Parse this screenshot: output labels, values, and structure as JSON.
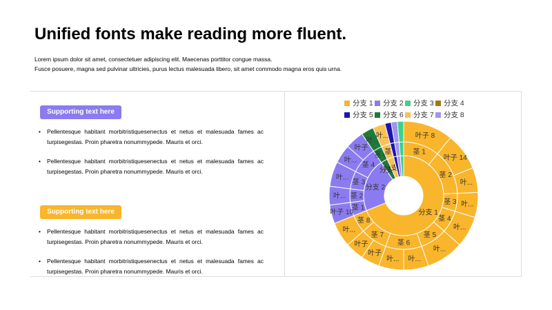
{
  "header": {
    "title": "Unified fonts make reading more fluent.",
    "desc_line1": "Lorem ipsum dolor sit amet, consectetuer adipiscing elit. Maecenas porttitor congue massa.",
    "desc_line2": "Fusce posuere, magna sed pulvinar ultricies, purus lectus malesuada libero, sit amet commodo magna eros quis urna."
  },
  "left_panel": {
    "section1": {
      "label": "Supporting text here",
      "bullets": [
        "Pellentesque habitant morbitristiquesenectus et netus et malesuada fames ac turpisegestas. Proin pharetra nonummypede. Mauris et orci.",
        "Pellentesque habitant morbitristiquesenectus et netus et malesuada fames ac turpisegestas. Proin pharetra nonummypede. Mauris et orci."
      ]
    },
    "section2": {
      "label": "Supporting text here",
      "bullets": [
        "Pellentesque habitant morbitristiquesenectus et netus et malesuada fames ac turpisegestas. Proin pharetra nonummypede. Mauris et orci.",
        "Pellentesque habitant morbitristiquesenectus et netus et malesuada fames ac turpisegestas. Proin pharetra nonummypede. Mauris et orci."
      ]
    }
  },
  "colors": {
    "accent_purple": "#8b7bf0",
    "accent_orange": "#f9b52b"
  },
  "chart_data": {
    "type": "sunburst",
    "title": "",
    "legend": [
      {
        "name": "分支 1",
        "color": "#f9b52b"
      },
      {
        "name": "分支 2",
        "color": "#8b7bf0"
      },
      {
        "name": "分支 3",
        "color": "#3ecf8e"
      },
      {
        "name": "分支 4",
        "color": "#a2790d"
      },
      {
        "name": "分支 5",
        "color": "#1b14b8"
      },
      {
        "name": "分支 6",
        "color": "#1f7a3a"
      },
      {
        "name": "分支 7",
        "color": "#f9c155"
      },
      {
        "name": "分支 8",
        "color": "#9e95ee"
      }
    ],
    "tree": [
      {
        "name": "分支 1",
        "color": "#f9b52b",
        "children": [
          {
            "name": "茎 1",
            "children": [
              {
                "name": "叶子 8",
                "value": 8
              }
            ]
          },
          {
            "name": "茎 2",
            "children": [
              {
                "name": "叶子 14",
                "value": 6
              },
              {
                "name": "叶...",
                "value": 4
              }
            ]
          },
          {
            "name": "茎 3",
            "children": [
              {
                "name": "叶...",
                "value": 4
              }
            ]
          },
          {
            "name": "茎 4",
            "children": [
              {
                "name": "叶...",
                "value": 5
              }
            ]
          },
          {
            "name": "茎 5",
            "children": [
              {
                "name": "叶...",
                "value": 6
              }
            ]
          },
          {
            "name": "茎 6",
            "children": [
              {
                "name": "叶...",
                "value": 4
              },
              {
                "name": "叶...",
                "value": 4
              }
            ]
          },
          {
            "name": "茎 7",
            "children": [
              {
                "name": "叶子",
                "value": 3
              },
              {
                "name": "叶子",
                "value": 3
              }
            ]
          },
          {
            "name": "茎 8",
            "children": [
              {
                "name": "叶...",
                "value": 4
              }
            ]
          }
        ]
      },
      {
        "name": "分支 2",
        "color": "#8b7bf0",
        "children": [
          {
            "name": "茎 1",
            "children": [
              {
                "name": "叶子 10",
                "value": 3
              }
            ]
          },
          {
            "name": "茎 2",
            "children": [
              {
                "name": "叶...",
                "value": 3
              }
            ]
          },
          {
            "name": "茎 3",
            "children": [
              {
                "name": "叶...",
                "value": 4
              }
            ]
          },
          {
            "name": "茎 4",
            "children": [
              {
                "name": "叶...",
                "value": 3
              },
              {
                "name": "叶子",
                "value": 3
              }
            ]
          }
        ]
      },
      {
        "name": "分支 6",
        "color": "#1f7a3a",
        "children": [
          {
            "name": "茎 6",
            "children": [
              {
                "name": "叶...",
                "value": 2
              }
            ]
          }
        ]
      },
      {
        "name": "分支 7",
        "color": "#f9c155",
        "children": [
          {
            "name": "茎",
            "children": [
              {
                "name": "叶...",
                "value": 2
              }
            ]
          }
        ]
      },
      {
        "name": "分支 5",
        "color": "#1b14b8",
        "children": [
          {
            "name": "茎",
            "children": [
              {
                "name": "叶",
                "value": 1
              }
            ]
          }
        ]
      },
      {
        "name": "分支 8",
        "color": "#9e95ee",
        "children": [
          {
            "name": "茎",
            "children": [
              {
                "name": "叶",
                "value": 1
              }
            ]
          }
        ]
      },
      {
        "name": "分支 3",
        "color": "#3ecf8e",
        "children": [
          {
            "name": "茎",
            "children": [
              {
                "name": "叶",
                "value": 1
              }
            ]
          }
        ]
      }
    ]
  }
}
